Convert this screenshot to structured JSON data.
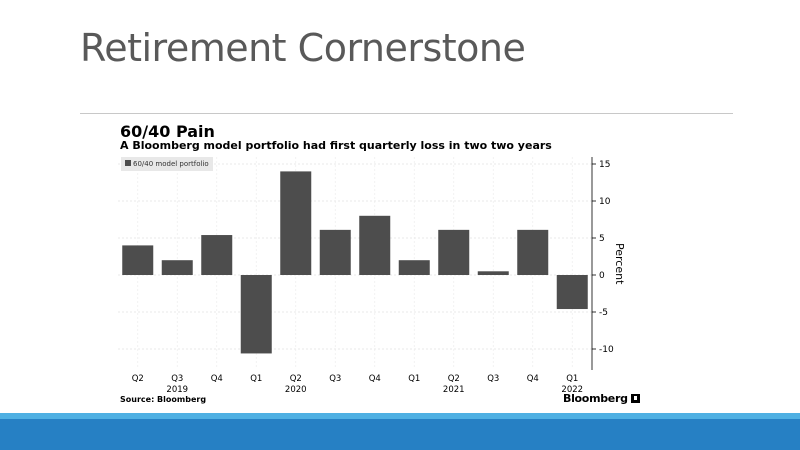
{
  "slide": {
    "title": "Retirement Cornerstone"
  },
  "chart_data": {
    "type": "bar",
    "title": "60/40 Pain",
    "subtitle": "A Bloomberg model portfolio had first quarterly loss in two two years",
    "categories": [
      "Q2",
      "Q3",
      "Q4",
      "Q1",
      "Q2",
      "Q3",
      "Q4",
      "Q1",
      "Q2",
      "Q3",
      "Q4",
      "Q1"
    ],
    "year_labels": [
      {
        "index": 1,
        "label": "2019"
      },
      {
        "index": 4,
        "label": "2020"
      },
      {
        "index": 8,
        "label": "2021"
      },
      {
        "index": 11,
        "label": "2022"
      }
    ],
    "series": [
      {
        "name": "60/40 model portfolio",
        "values": [
          4,
          2,
          5.4,
          -10.6,
          14,
          6.1,
          8,
          2,
          6.1,
          0.5,
          6.1,
          -4.6
        ]
      }
    ],
    "ylabel": "Percent",
    "ylim": [
      -12,
      16
    ],
    "yticks": [
      -10,
      -5,
      0,
      5,
      10,
      15
    ],
    "ytick_labels": [
      "-10",
      "-5",
      "0",
      "5",
      "10",
      "15"
    ],
    "legend": "top-left",
    "source": "Source: Bloomberg",
    "brand": "Bloomberg",
    "bar_color": "#4d4d4d"
  }
}
